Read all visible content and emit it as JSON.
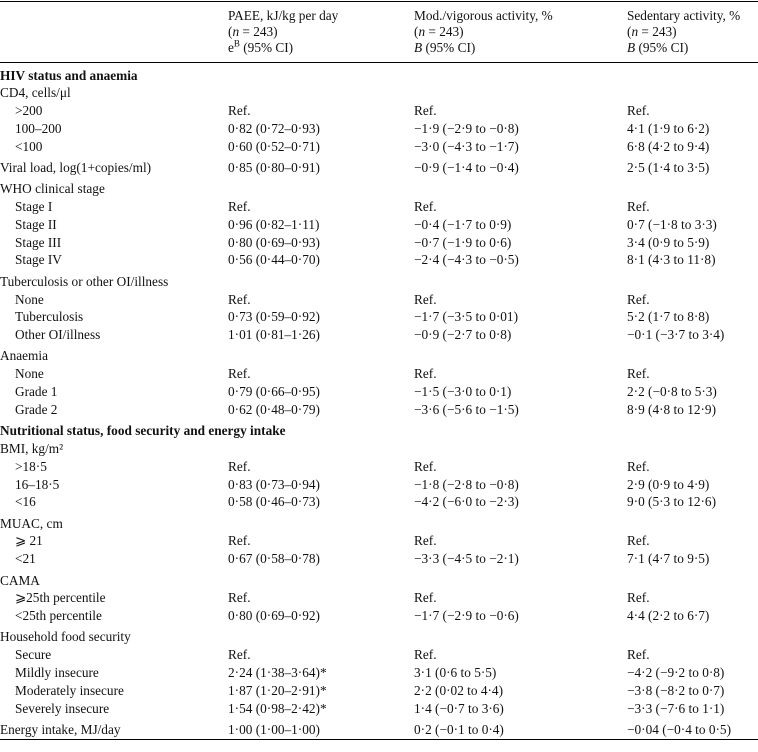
{
  "table": {
    "header": [
      [
        [
          {
            "text": "PAEE, kJ/kg per day",
            "style": "plain"
          }
        ],
        [
          {
            "text": "(",
            "style": "plain"
          },
          {
            "text": "n",
            "style": "italic"
          },
          {
            "text": " = 243)",
            "style": "plain"
          }
        ],
        [
          {
            "text": "e",
            "style": "plain"
          },
          {
            "text": "B",
            "style": "sup"
          },
          {
            "text": " (95% CI)",
            "style": "plain"
          }
        ]
      ],
      [
        [
          {
            "text": "Mod./vigorous activity, %",
            "style": "plain"
          }
        ],
        [
          {
            "text": "(",
            "style": "plain"
          },
          {
            "text": "n",
            "style": "italic"
          },
          {
            "text": " = 243)",
            "style": "plain"
          }
        ],
        [
          {
            "text": "B",
            "style": "italic"
          },
          {
            "text": " (95% CI)",
            "style": "plain"
          }
        ]
      ],
      [
        [
          {
            "text": "Sedentary activity, %",
            "style": "plain"
          }
        ],
        [
          {
            "text": "(",
            "style": "plain"
          },
          {
            "text": "n",
            "style": "italic"
          },
          {
            "text": " = 243)",
            "style": "plain"
          }
        ],
        [
          {
            "text": "B",
            "style": "italic"
          },
          {
            "text": " (95% CI)",
            "style": "plain"
          }
        ]
      ]
    ],
    "rows": [
      {
        "kind": "section",
        "label": "HIV status and anaemia"
      },
      {
        "kind": "group",
        "label": "CD4, cells/μl"
      },
      {
        "kind": "item",
        "label": ">200",
        "cells": [
          "Ref.",
          "Ref.",
          "Ref."
        ]
      },
      {
        "kind": "item",
        "label": "100–200",
        "cells": [
          "0·82 (0·72–0·93)",
          "−1·9 (−2·9 to −0·8)",
          "4·1 (1·9 to 6·2)"
        ]
      },
      {
        "kind": "item",
        "label": "<100",
        "cells": [
          "0·60 (0·52–0·71)",
          "−3·0 (−4·3 to −1·7)",
          "6·8 (4·2 to 9·4)"
        ]
      },
      {
        "kind": "group",
        "label": "Viral load, log(1+copies/ml)",
        "cells": [
          "0·85 (0·80–0·91)",
          "−0·9 (−1·4 to −0·4)",
          "2·5 (1·4 to 3·5)"
        ]
      },
      {
        "kind": "group",
        "label": "WHO clinical stage"
      },
      {
        "kind": "item",
        "label": "Stage I",
        "cells": [
          "Ref.",
          "Ref.",
          "Ref."
        ]
      },
      {
        "kind": "item",
        "label": "Stage II",
        "cells": [
          "0·96 (0·82–1·11)",
          "−0·4 (−1·7 to 0·9)",
          "0·7 (−1·8 to 3·3)"
        ]
      },
      {
        "kind": "item",
        "label": "Stage III",
        "cells": [
          "0·80 (0·69–0·93)",
          "−0·7 (−1·9 to 0·6)",
          "3·4 (0·9 to 5·9)"
        ]
      },
      {
        "kind": "item",
        "label": "Stage IV",
        "cells": [
          "0·56 (0·44–0·70)",
          "−2·4 (−4·3 to −0·5)",
          "8·1 (4·3 to 11·8)"
        ]
      },
      {
        "kind": "group",
        "label": "Tuberculosis or other OI/illness"
      },
      {
        "kind": "item",
        "label": "None",
        "cells": [
          "Ref.",
          "Ref.",
          "Ref."
        ]
      },
      {
        "kind": "item",
        "label": "Tuberculosis",
        "cells": [
          "0·73 (0·59–0·92)",
          "−1·7 (−3·5 to 0·01)",
          "5·2 (1·7 to 8·8)"
        ]
      },
      {
        "kind": "item",
        "label": "Other OI/illness",
        "cells": [
          "1·01 (0·81–1·26)",
          "−0·9 (−2·7 to 0·8)",
          "−0·1 (−3·7 to 3·4)"
        ]
      },
      {
        "kind": "group",
        "label": "Anaemia"
      },
      {
        "kind": "item",
        "label": "None",
        "cells": [
          "Ref.",
          "Ref.",
          "Ref."
        ]
      },
      {
        "kind": "item",
        "label": "Grade 1",
        "cells": [
          "0·79 (0·66–0·95)",
          "−1·5 (−3·0 to 0·1)",
          "2·2 (−0·8 to 5·3)"
        ]
      },
      {
        "kind": "item",
        "label": "Grade 2",
        "cells": [
          "0·62 (0·48–0·79)",
          "−3·6 (−5·6 to −1·5)",
          "8·9 (4·8 to 12·9)"
        ]
      },
      {
        "kind": "section",
        "label": "Nutritional status, food security and energy intake"
      },
      {
        "kind": "group",
        "label": "BMI, kg/m²"
      },
      {
        "kind": "item",
        "label": ">18·5",
        "cells": [
          "Ref.",
          "Ref.",
          "Ref."
        ]
      },
      {
        "kind": "item",
        "label": "16–18·5",
        "cells": [
          "0·83 (0·73–0·94)",
          "−1·8 (−2·8 to −0·8)",
          "2·9 (0·9 to 4·9)"
        ]
      },
      {
        "kind": "item",
        "label": "<16",
        "cells": [
          "0·58 (0·46–0·73)",
          "−4·2 (−6·0 to −2·3)",
          "9·0 (5·3 to 12·6)"
        ]
      },
      {
        "kind": "group",
        "label": "MUAC, cm"
      },
      {
        "kind": "item",
        "label": "⩾ 21",
        "cells": [
          "Ref.",
          "Ref.",
          "Ref."
        ]
      },
      {
        "kind": "item",
        "label": "<21",
        "cells": [
          "0·67 (0·58–0·78)",
          "−3·3 (−4·5 to −2·1)",
          "7·1 (4·7 to 9·5)"
        ]
      },
      {
        "kind": "group",
        "label": "CAMA"
      },
      {
        "kind": "item",
        "label": "⩾25th percentile",
        "cells": [
          "Ref.",
          "Ref.",
          "Ref."
        ]
      },
      {
        "kind": "item",
        "label": "<25th percentile",
        "cells": [
          "0·80 (0·69–0·92)",
          "−1·7 (−2·9 to −0·6)",
          "4·4 (2·2 to 6·7)"
        ]
      },
      {
        "kind": "group",
        "label": "Household food security"
      },
      {
        "kind": "item",
        "label": "Secure",
        "cells": [
          "Ref.",
          "Ref.",
          "Ref."
        ]
      },
      {
        "kind": "item",
        "label": "Mildly insecure",
        "cells": [
          "2·24 (1·38–3·64)*",
          "3·1 (0·6 to 5·5)",
          "−4·2 (−9·2 to 0·8)"
        ]
      },
      {
        "kind": "item",
        "label": "Moderately insecure",
        "cells": [
          "1·87 (1·20–2·91)*",
          "2·2 (0·02 to 4·4)",
          "−3·8 (−8·2 to 0·7)"
        ]
      },
      {
        "kind": "item",
        "label": "Severely insecure",
        "cells": [
          "1·54 (0·98–2·42)*",
          "1·4 (−0·7 to 3·6)",
          "−3·3 (−7·6 to 1·1)"
        ]
      },
      {
        "kind": "group",
        "label": "Energy intake, MJ/day",
        "cells": [
          "1·00 (1·00–1·00)",
          "0·2 (−0·1 to 0·4)",
          "−0·04 (−0·4 to 0·5)"
        ]
      }
    ]
  }
}
